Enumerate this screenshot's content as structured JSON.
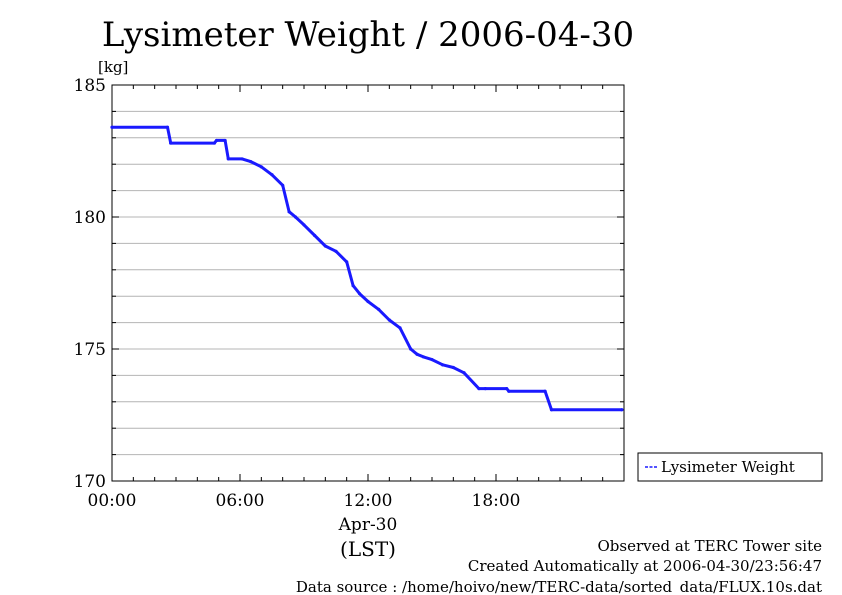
{
  "chart_data": {
    "type": "line",
    "title": "Lysimeter Weight / 2006-04-30",
    "ylabel": "[kg]",
    "ylim": [
      170,
      185
    ],
    "yticks": [
      "170",
      "175",
      "180",
      "185"
    ],
    "xlim": [
      0,
      24
    ],
    "xticks": [
      "00:00",
      "06:00",
      "12:00",
      "18:00"
    ],
    "x_date_label": "Apr-30",
    "x_zone_label": "(LST)",
    "grid": true,
    "legend_position": "right",
    "series": [
      {
        "name": "Lysimeter Weight",
        "color": "#1a1aff",
        "x": [
          0,
          2.6,
          2.75,
          4.8,
          4.9,
          5.3,
          5.45,
          6.1,
          6.5,
          7.0,
          7.5,
          8.0,
          8.3,
          8.6,
          9.0,
          9.5,
          10.0,
          10.5,
          11.0,
          11.3,
          11.6,
          12.0,
          12.5,
          13.0,
          13.5,
          14.0,
          14.3,
          14.6,
          15.0,
          15.5,
          16.0,
          16.5,
          17.2,
          17.5,
          18.5,
          18.6,
          20.3,
          20.6,
          23.9
        ],
        "y": [
          183.4,
          183.4,
          182.8,
          182.8,
          182.9,
          182.9,
          182.2,
          182.2,
          182.1,
          181.9,
          181.6,
          181.2,
          180.2,
          180.0,
          179.7,
          179.3,
          178.9,
          178.7,
          178.3,
          177.4,
          177.1,
          176.8,
          176.5,
          176.1,
          175.8,
          175.0,
          174.8,
          174.7,
          174.6,
          174.4,
          174.3,
          174.1,
          173.5,
          173.5,
          173.5,
          173.4,
          173.4,
          172.7,
          172.7
        ]
      }
    ]
  },
  "footer": {
    "line1": "Observed at TERC Tower site",
    "line2": "Created Automatically at 2006-04-30/23:56:47",
    "line3": "Data source : /home/hoivo/new/TERC-data/sorted_data/FLUX.10s.dat"
  }
}
